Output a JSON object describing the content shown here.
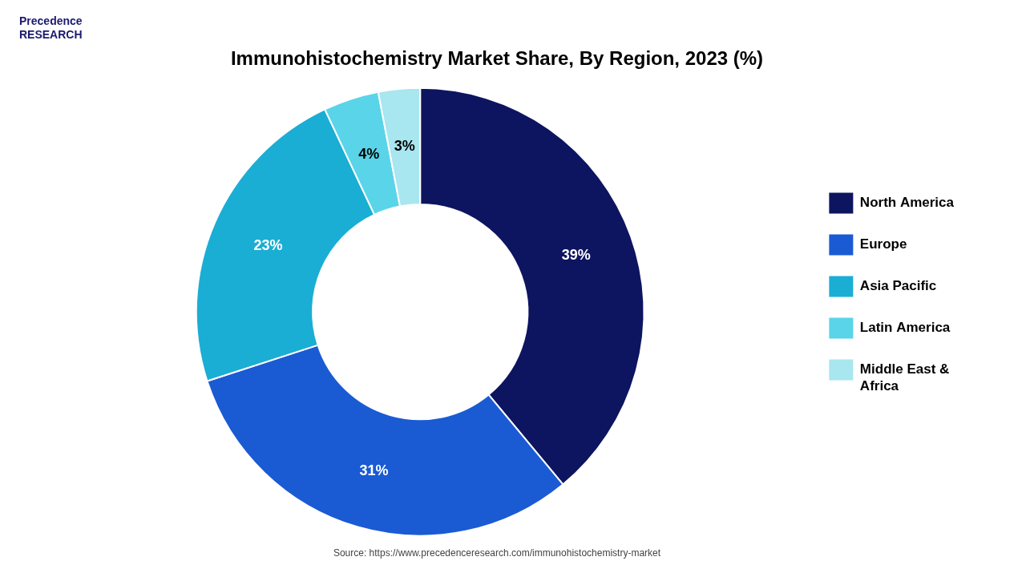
{
  "chart_data": {
    "type": "doughnut",
    "title": "Immunohistochemistry Market Share, By Region, 2023 (%)",
    "categories": [
      "North America",
      "Europe",
      "Asia Pacific",
      "Latin America",
      "Middle East &\nAfrica"
    ],
    "values": [
      39,
      31,
      23,
      4,
      3
    ],
    "value_labels": [
      "39%",
      "31%",
      "23%",
      "4%",
      "3%"
    ],
    "colors": [
      "#0d1560",
      "#1a5bd4",
      "#1aaed4",
      "#5ad4e8",
      "#a8e6f0"
    ],
    "data_labels": true,
    "legend": "right",
    "annotations": [
      "Precedence\nRESEARCH",
      "Source: https://www.precedenceresearch.com/immunohistochemistry-market"
    ]
  }
}
